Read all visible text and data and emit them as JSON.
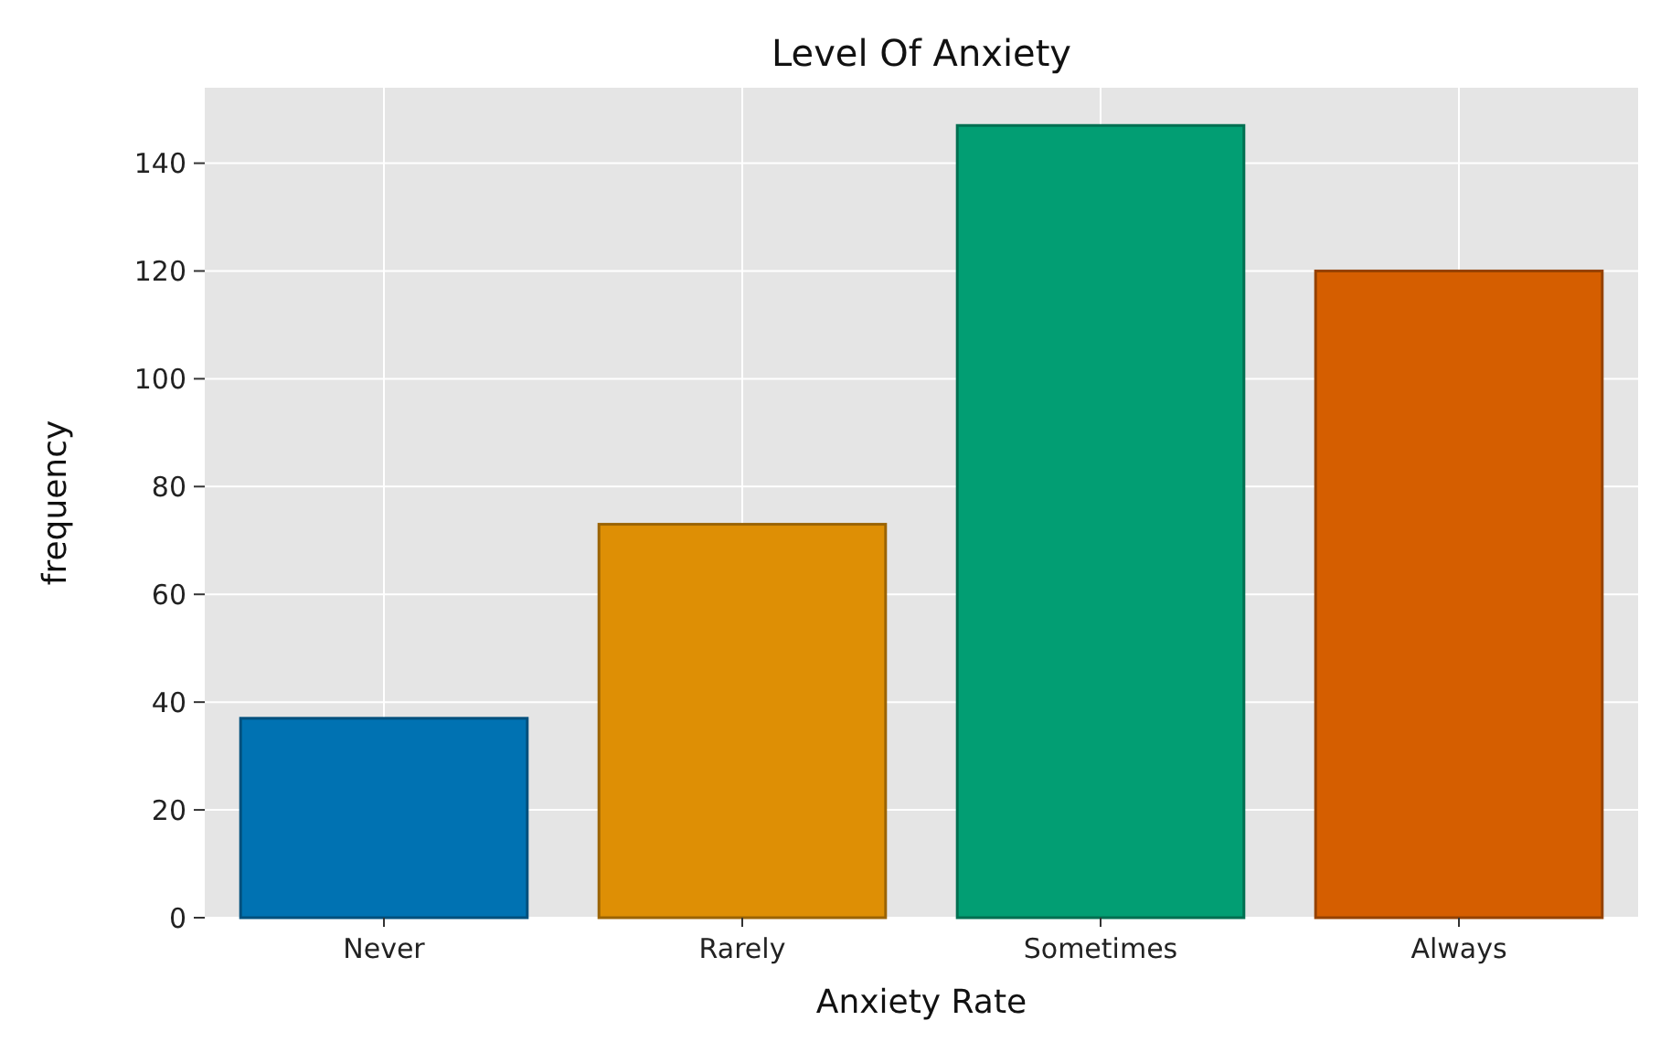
{
  "chart_data": {
    "type": "bar",
    "title": "Level Of Anxiety",
    "xlabel": "Anxiety Rate",
    "ylabel": "frequency",
    "categories": [
      "Never",
      "Rarely",
      "Sometimes",
      "Always"
    ],
    "values": [
      37,
      73,
      147,
      120
    ],
    "colors": [
      "#0072b2",
      "#de8f05",
      "#029e73",
      "#d55e00"
    ],
    "ylim": [
      0,
      154
    ],
    "yticks": [
      0,
      20,
      40,
      60,
      80,
      100,
      120,
      140
    ],
    "grid": true
  }
}
